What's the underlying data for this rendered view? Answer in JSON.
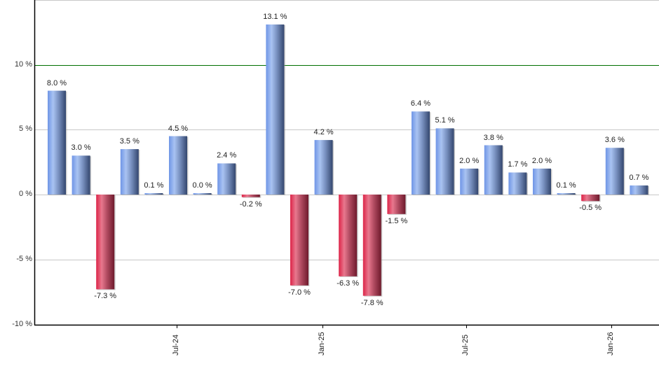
{
  "chart_data": {
    "type": "bar",
    "title": "",
    "xlabel": "",
    "ylabel": "",
    "ylim": [
      -10,
      15
    ],
    "grid": true,
    "legend": null,
    "y_ticks": [
      {
        "value": 10,
        "label": "10 %"
      },
      {
        "value": 5,
        "label": "5 %"
      },
      {
        "value": 0,
        "label": "0 %"
      },
      {
        "value": -5,
        "label": "-5 %"
      },
      {
        "value": -10,
        "label": "-10 %"
      }
    ],
    "x_ticks": [
      {
        "index": 5,
        "label": "Jul-24"
      },
      {
        "index": 11,
        "label": "Jan-25"
      },
      {
        "index": 17,
        "label": "Jul-25"
      },
      {
        "index": 23,
        "label": "Jan-26"
      }
    ],
    "reference_line": {
      "value": 10,
      "color": "#007000"
    },
    "colors": {
      "positive": "#6f95dc",
      "negative": "#c4314f",
      "grid": "#c8c8c8",
      "axis": "#000000"
    },
    "values": [
      8.0,
      3.0,
      -7.3,
      3.5,
      0.1,
      4.5,
      0.0,
      2.4,
      -0.2,
      13.1,
      -7.0,
      4.2,
      -6.3,
      -7.8,
      -1.5,
      6.4,
      5.1,
      2.0,
      3.8,
      1.7,
      2.0,
      0.1,
      -0.5,
      3.6,
      0.7
    ],
    "labels": [
      "8.0 %",
      "3.0 %",
      "-7.3 %",
      "3.5 %",
      "0.1 %",
      "4.5 %",
      "0.0 %",
      "2.4 %",
      "-0.2 %",
      "13.1 %",
      "-7.0 %",
      "4.2 %",
      "-6.3 %",
      "-7.8 %",
      "-1.5 %",
      "6.4 %",
      "5.1 %",
      "2.0 %",
      "3.8 %",
      "1.7 %",
      "2.0 %",
      "0.1 %",
      "-0.5 %",
      "3.6 %",
      "0.7 %"
    ]
  }
}
